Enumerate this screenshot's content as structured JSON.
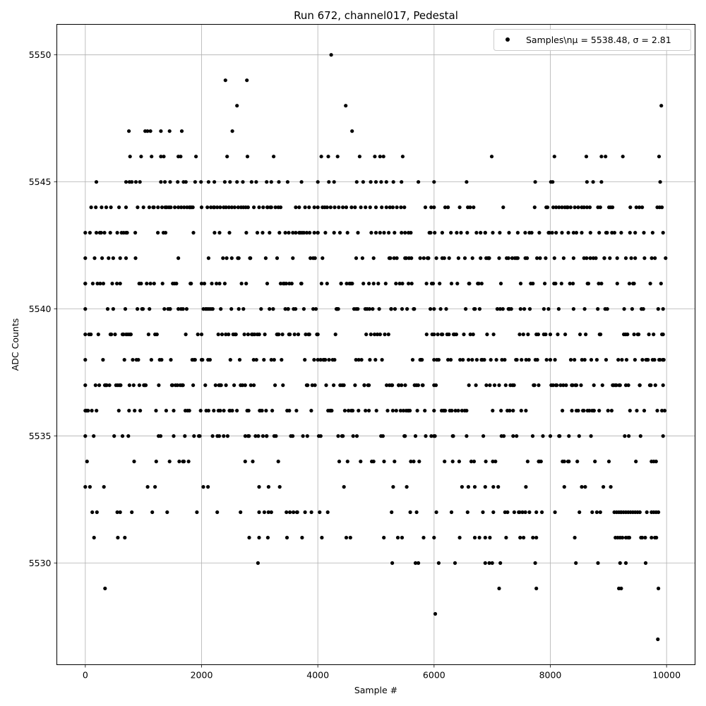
{
  "chart_data": {
    "type": "scatter",
    "title": "Run 672, channel017, Pedestal",
    "xlabel": "Sample #",
    "ylabel": "ADC Counts",
    "xlim": [
      -490,
      10490
    ],
    "ylim": [
      5526.0,
      5551.2
    ],
    "x_ticks": [
      0,
      2000,
      4000,
      6000,
      8000,
      10000
    ],
    "y_ticks": [
      5530,
      5535,
      5540,
      5545,
      5550
    ],
    "grid": true,
    "legend": {
      "position": "top-right",
      "entries": [
        "Samples\\nμ = 5538.48, σ = 2.81"
      ]
    },
    "series": [
      {
        "name": "Samples\\nμ = 5538.48, σ = 2.81",
        "color": "#000000",
        "marker": "circle",
        "n_samples": 10000,
        "mean": 5538.48,
        "sigma": 2.81,
        "level_coverage": [
          {
            "y": 5527,
            "x": [
              9850
            ]
          },
          {
            "y": 5528,
            "x": [
              6020
            ]
          },
          {
            "y": 5529,
            "x": [
              340,
              7120,
              7760,
              9180,
              9220,
              9860
            ]
          },
          {
            "y": 5530,
            "x": [
              2970,
              5280,
              5680,
              5730,
              6080,
              6360,
              6880,
              6950,
              7000,
              7140,
              7740,
              8440,
              8820,
              9200,
              9300,
              9640
            ]
          },
          {
            "y": 5531,
            "x": [
              150,
              560,
              680,
              2820,
              2990,
              3140,
              3470,
              3730,
              4070,
              4490,
              5450,
              5820,
              6000,
              6440,
              6700,
              6780,
              6880,
              6960,
              7240,
              7480,
              7540,
              7700,
              7760,
              8420,
              9120,
              9160,
              9200,
              9240,
              9300,
              9340,
              9360,
              9560,
              9580,
              9740,
              9800
            ]
          },
          {
            "y": 5532,
            "x": [
              120,
              200,
              550,
              600,
              2270,
              2670,
              2990,
              3080,
              3150,
              3200,
              3460,
              3520,
              3580,
              3640,
              3780,
              3890,
              4170,
              5270,
              5590,
              5700,
              6040,
              6300,
              6840,
              7020,
              7220,
              7380,
              7470,
              7570,
              7640,
              7760,
              8080,
              8500,
              8720,
              8800,
              8860,
              9100,
              9140,
              9180,
              9220,
              9260,
              9300,
              9340,
              9380,
              9420,
              9460,
              9500,
              9540,
              9660,
              9740,
              9780,
              9820,
              9860
            ]
          },
          {
            "y": 5533,
            "x": [
              0,
              1200,
              2030,
              2110,
              2990,
              4450,
              5530,
              6480,
              6590,
              6700,
              6880,
              7020,
              7580,
              8240,
              8540,
              8600,
              9040
            ]
          },
          {
            "y": 5534,
            "x": [
              30,
              840,
              1220,
              1450,
              1680,
              2750,
              2880,
              3320,
              4960,
              5140,
              5320,
              5600,
              5650,
              6180,
              6320,
              6890,
              7010,
              7610,
              7800,
              8210,
              8320,
              9740,
              9780,
              9820
            ]
          },
          {
            "y": 5535,
            "x": [
              0,
              640,
              740,
              1260,
              1520,
              1870,
              2190,
              2380,
              2800,
              3120,
              3250,
              3820,
              4050,
              4350,
              5500,
              6000,
              6330,
              6560,
              7160,
              7420,
              8150,
              8700,
              9350,
              9940
            ]
          },
          {
            "y": 5536,
            "x": [
              0,
              1720,
              1790,
              2120,
              2210,
              2290,
              2320,
              2490,
              2810,
              3000,
              3110,
              3510,
              4600,
              4700,
              4820,
              4880,
              5290,
              5350,
              5520,
              5560,
              6130,
              6180,
              7260,
              7300,
              7360,
              7500,
              7580,
              8370,
              8450,
              8750,
              8840,
              9370,
              9920
            ]
          },
          {
            "y": 5537,
            "x": [
              0,
              760,
              930,
              1500,
              1680,
              2300,
              2420,
              2750,
              2900,
              3400,
              3950,
              4420,
              4800,
              5270,
              5390,
              5800,
              6000,
              6600,
              6900,
              7350,
              7800,
              8450,
              8750,
              9300,
              9540,
              9940
            ]
          },
          {
            "y": 5538,
            "x": [
              0,
              2000,
              4000,
              6000,
              8000,
              9940
            ]
          },
          {
            "y": 5539,
            "x": [
              0,
              2000,
              4000,
              6000,
              8000,
              9940
            ]
          },
          {
            "y": 5540,
            "x": [
              0,
              1460,
              2070,
              2330,
              2640,
              3490,
              4330,
              4660,
              4890,
              5260,
              5450,
              5660,
              6000,
              6690,
              7290,
              7890,
              8590,
              8980,
              9270,
              9940
            ]
          },
          {
            "y": 5541,
            "x": [
              0,
              310,
              600,
              1820,
              2310,
              3130,
              3510,
              3720,
              4400,
              4570,
              4880,
              5560,
              5870,
              5960,
              6300,
              6600,
              6820,
              7150,
              7490,
              7700,
              8090,
              8390,
              8640,
              9440,
              9720
            ]
          },
          {
            "y": 5542,
            "x": [
              0,
              480,
              600,
              700,
              1600,
              2120,
              2520,
              2840,
              3300,
              3570,
              3920,
              4660,
              4960,
              5230,
              5500,
              5610,
              5760,
              5900,
              6040,
              6140,
              6260,
              6420,
              6530,
              6660,
              6800,
              6950,
              7120,
              7280,
              7420,
              7570,
              7770,
              7920,
              8070,
              8230,
              8400,
              8580,
              8740,
              8930,
              9150,
              9300,
              9460,
              9620,
              9800
            ]
          },
          {
            "y": 5543,
            "x": [
              0,
              80,
              190,
              250,
              330,
              430,
              550,
              660,
              700,
              860,
              1380,
              1860,
              2310,
              2480,
              2770,
              2960,
              3050,
              3170,
              3340,
              3440,
              3500,
              3570,
              3620,
              3680,
              3760,
              3810,
              3860,
              3940,
              4000,
              4130,
              4280,
              4380,
              4510,
              4690,
              4920,
              5000,
              5070,
              5140,
              5220,
              5320,
              5440,
              5500,
              5560,
              5940,
              6010,
              6140,
              6290,
              6390,
              6570,
              6730,
              6880,
              7010,
              7130,
              7290,
              7440,
              7640,
              7810,
              7970,
              8100,
              8200,
              8310,
              8400,
              8540,
              8690,
              8840,
              8960,
              9060,
              9220,
              9370,
              9460,
              9610,
              9760,
              9940
            ]
          },
          {
            "y": 5544,
            "x": [
              100,
              180,
              280,
              360,
              440,
              580,
              700,
              900,
              1000,
              1100,
              1180,
              1250,
              1320,
              1400,
              1470,
              1540,
              1600,
              1650,
              1700,
              1750,
              1800,
              1850,
              2000,
              2100,
              2160,
              2220,
              2270,
              2320,
              2380,
              2420,
              2470,
              2520,
              2570,
              2630,
              2680,
              2720,
              2760,
              2800,
              2900,
              2990,
              3060,
              3130,
              3200,
              3270,
              3320,
              3360,
              3620,
              3780,
              3850,
              3940,
              4000,
              4080,
              4120,
              4160,
              4220,
              4290,
              4360,
              4430,
              4490,
              4580,
              4640,
              4740,
              4820,
              4900,
              5000,
              5100,
              5180,
              5240,
              5290,
              5360,
              5430,
              5490,
              5850,
              5950,
              6000,
              6190,
              6240,
              6440,
              6580,
              6620,
              6680,
              7190,
              7730,
              7930,
              8050,
              8100,
              8150,
              8200,
              8250,
              8300,
              8350,
              8420,
              8480,
              8540,
              8580,
              8630,
              8680,
              8820,
              8860,
              9010,
              9070,
              9480,
              9530,
              9580,
              9840,
              9880,
              9920
            ]
          },
          {
            "y": 5545,
            "x": [
              190,
              700,
              760,
              800,
              870,
              940,
              1300,
              1370,
              1460,
              1590,
              1690,
              1730,
              1890,
              1990,
              2120,
              2220,
              2400,
              2490,
              2610,
              2710,
              2860,
              2940,
              3120,
              3200,
              3330,
              3480,
              3720,
              4000,
              4190,
              4280,
              4670,
              4780,
              4910,
              5000,
              5090,
              5180,
              5300,
              5440,
              5730,
              6000,
              6560,
              7740,
              8010,
              8040,
              8630,
              8880,
              9890
            ]
          },
          {
            "y": 5546,
            "x": [
              770,
              960,
              1140,
              1300,
              1350,
              1600,
              1640,
              2440,
              2790,
              3240,
              4060,
              4180,
              4340,
              4980,
              5070,
              5130,
              5460,
              8070,
              8620,
              8880,
              8950,
              9870
            ]
          },
          {
            "y": 5547,
            "x": [
              750,
              1030,
              1070,
              1120,
              1300,
              1450,
              1660,
              2530,
              4590
            ]
          },
          {
            "y": 5548,
            "x": [
              2610,
              9910
            ]
          },
          {
            "y": 5549,
            "x": [
              2410,
              2780
            ]
          },
          {
            "y": 5550,
            "x": [
              4230
            ]
          }
        ]
      }
    ]
  }
}
